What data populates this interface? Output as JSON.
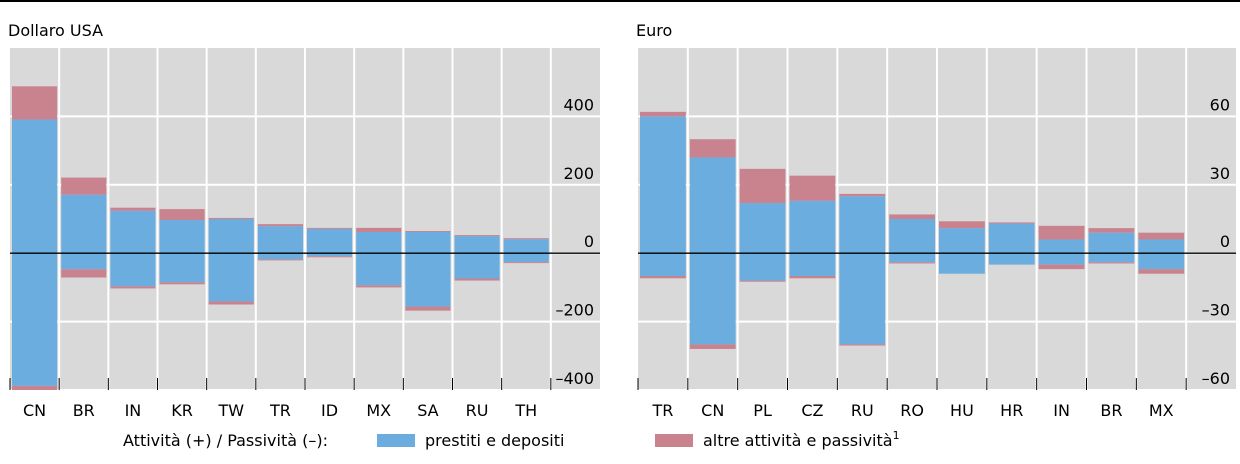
{
  "chart_data": [
    {
      "type": "bar",
      "stacked": true,
      "title": "Dollaro USA",
      "categories": [
        "CN",
        "BR",
        "IN",
        "KR",
        "TW",
        "TR",
        "ID",
        "MX",
        "SA",
        "RU",
        "TH"
      ],
      "series": [
        {
          "name": "prestiti e depositi",
          "color": "#6cade0",
          "assets": [
            391,
            171,
            124,
            97,
            100,
            79,
            71,
            62,
            62,
            50,
            41
          ],
          "liabilities": [
            -388,
            -47,
            -97,
            -85,
            -141,
            -18,
            -9,
            -94,
            -156,
            -74,
            -26
          ]
        },
        {
          "name": "altre attività e passività",
          "note": "1",
          "color": "#c9838f",
          "assets": [
            97,
            50,
            9,
            32,
            3,
            6,
            3,
            12,
            3,
            3,
            3
          ],
          "liabilities": [
            -12,
            -24,
            -6,
            -6,
            -9,
            -3,
            -3,
            -6,
            -12,
            -6,
            -3
          ]
        }
      ],
      "ylim": [
        -400,
        600
      ],
      "yticks": [
        {
          "value": -400,
          "label": "–400"
        },
        {
          "value": -200,
          "label": "–200"
        },
        0,
        200,
        400
      ],
      "grid": true,
      "legend_title": "Attività (+) / Passività (–):"
    },
    {
      "type": "bar",
      "stacked": true,
      "title": "Euro",
      "categories": [
        "TR",
        "CN",
        "PL",
        "CZ",
        "RU",
        "RO",
        "HU",
        "HR",
        "IN",
        "BR",
        "MX"
      ],
      "series": [
        {
          "color": "#6cade0",
          "assets": [
            60,
            42,
            22,
            23,
            25,
            15,
            11,
            13,
            6,
            9,
            6
          ],
          "liabilities": [
            -10,
            -40,
            -12,
            -10,
            -40,
            -4,
            -9,
            -5,
            -5,
            -4,
            -7
          ]
        },
        {
          "color": "#c9838f",
          "assets": [
            2,
            8,
            15,
            11,
            1,
            2,
            3,
            0.5,
            6,
            2,
            3
          ],
          "liabilities": [
            -1,
            -2,
            -0.5,
            -1,
            -0.5,
            -0.5,
            0,
            0,
            -2,
            -0.5,
            -2
          ]
        }
      ],
      "ylim": [
        -60,
        90
      ],
      "yticks": [
        {
          "value": -60,
          "label": "–60"
        },
        {
          "value": -30,
          "label": "–30"
        },
        0,
        30,
        60
      ],
      "grid": true
    }
  ]
}
